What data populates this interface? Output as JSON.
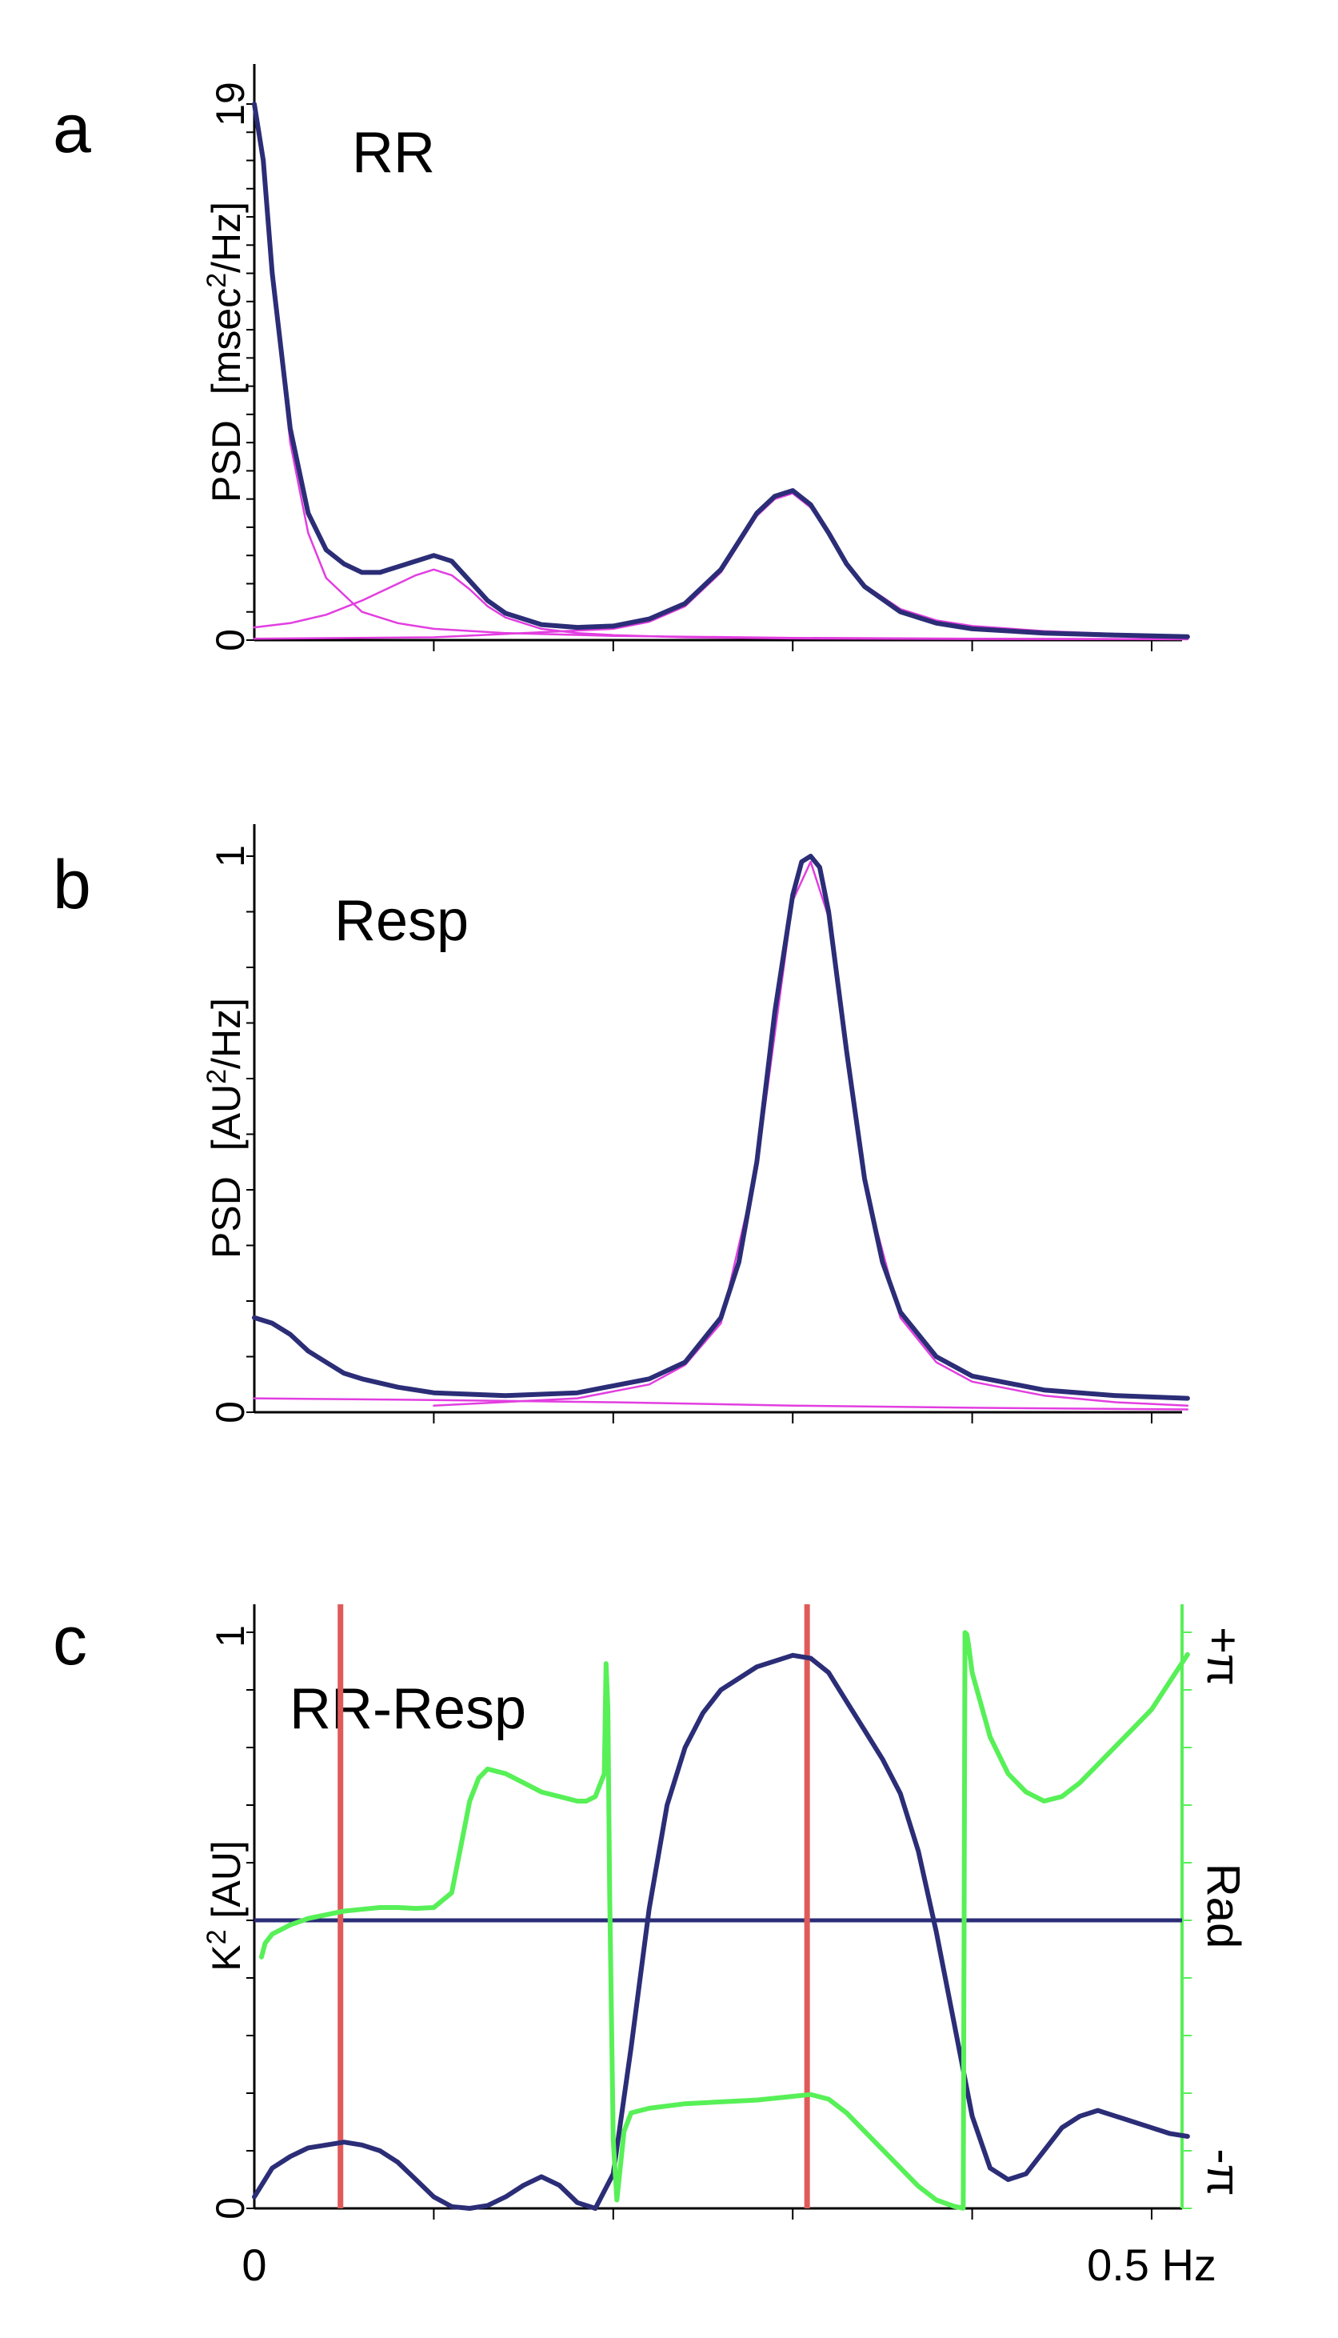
{
  "colors": {
    "total": "#2b2d77",
    "component": "#e23ee0",
    "coherence": "#2b2d77",
    "phase": "#57f057",
    "marker": "#e05a5a",
    "axis": "#000000"
  },
  "x_axis": {
    "start_label": "0",
    "end_label": "0.5 Hz"
  },
  "chart_data": [
    {
      "panel": "a",
      "type": "line",
      "title": "RR",
      "ylabel_main": "PSD",
      "ylabel_unit_pre": "[msec",
      "ylabel_unit_sup": "2",
      "ylabel_unit_post": "/Hz]",
      "ytick_top": "19",
      "ytick_bottom": "0",
      "xlim": [
        0,
        0.52
      ],
      "ylim": [
        0,
        19
      ],
      "series": [
        {
          "role": "total",
          "x": [
            0,
            0.005,
            0.01,
            0.02,
            0.03,
            0.04,
            0.05,
            0.06,
            0.07,
            0.08,
            0.09,
            0.1,
            0.11,
            0.12,
            0.13,
            0.14,
            0.16,
            0.18,
            0.2,
            0.22,
            0.24,
            0.26,
            0.27,
            0.28,
            0.29,
            0.3,
            0.31,
            0.32,
            0.33,
            0.34,
            0.36,
            0.38,
            0.4,
            0.44,
            0.48,
            0.52
          ],
          "y": [
            19,
            17,
            13,
            7.5,
            4.5,
            3.2,
            2.7,
            2.4,
            2.4,
            2.6,
            2.8,
            3.0,
            2.8,
            2.1,
            1.4,
            0.95,
            0.55,
            0.45,
            0.5,
            0.75,
            1.3,
            2.5,
            3.5,
            4.5,
            5.1,
            5.3,
            4.8,
            3.8,
            2.7,
            1.9,
            1.0,
            0.6,
            0.4,
            0.25,
            0.18,
            0.12
          ]
        },
        {
          "role": "component-vlf",
          "x": [
            0,
            0.005,
            0.01,
            0.02,
            0.03,
            0.04,
            0.06,
            0.08,
            0.1,
            0.14,
            0.2,
            0.3,
            0.4,
            0.52
          ],
          "y": [
            19,
            16.8,
            12.8,
            7.0,
            3.8,
            2.2,
            1.0,
            0.6,
            0.4,
            0.25,
            0.15,
            0.08,
            0.05,
            0.03
          ]
        },
        {
          "role": "component-lf",
          "x": [
            0,
            0.02,
            0.04,
            0.06,
            0.08,
            0.09,
            0.1,
            0.11,
            0.12,
            0.13,
            0.14,
            0.16,
            0.18,
            0.2,
            0.24,
            0.3,
            0.4,
            0.52
          ],
          "y": [
            0.45,
            0.6,
            0.9,
            1.4,
            2.0,
            2.3,
            2.5,
            2.3,
            1.8,
            1.2,
            0.8,
            0.4,
            0.25,
            0.18,
            0.1,
            0.06,
            0.04,
            0.03
          ]
        },
        {
          "role": "component-hf",
          "x": [
            0,
            0.1,
            0.2,
            0.22,
            0.24,
            0.26,
            0.27,
            0.28,
            0.29,
            0.3,
            0.31,
            0.32,
            0.33,
            0.34,
            0.36,
            0.38,
            0.4,
            0.44,
            0.48,
            0.52
          ],
          "y": [
            0.05,
            0.1,
            0.4,
            0.65,
            1.2,
            2.4,
            3.4,
            4.4,
            5.0,
            5.2,
            4.7,
            3.75,
            2.7,
            1.95,
            1.1,
            0.7,
            0.5,
            0.32,
            0.22,
            0.15
          ]
        }
      ]
    },
    {
      "panel": "b",
      "type": "line",
      "title": "Resp",
      "ylabel_main": "PSD",
      "ylabel_unit_pre": "[AU",
      "ylabel_unit_sup": "2",
      "ylabel_unit_post": "/Hz]",
      "ytick_top": "1",
      "ytick_bottom": "0",
      "xlim": [
        0,
        0.52
      ],
      "ylim": [
        0,
        1
      ],
      "series": [
        {
          "role": "total",
          "x": [
            0,
            0.01,
            0.02,
            0.03,
            0.04,
            0.05,
            0.06,
            0.08,
            0.1,
            0.14,
            0.18,
            0.22,
            0.24,
            0.26,
            0.27,
            0.28,
            0.29,
            0.3,
            0.305,
            0.31,
            0.315,
            0.32,
            0.33,
            0.34,
            0.35,
            0.36,
            0.38,
            0.4,
            0.44,
            0.48,
            0.52
          ],
          "y": [
            0.17,
            0.16,
            0.14,
            0.11,
            0.09,
            0.07,
            0.06,
            0.045,
            0.035,
            0.03,
            0.035,
            0.06,
            0.09,
            0.17,
            0.27,
            0.45,
            0.72,
            0.93,
            0.99,
            1.0,
            0.98,
            0.9,
            0.65,
            0.42,
            0.27,
            0.18,
            0.1,
            0.065,
            0.04,
            0.03,
            0.025
          ]
        },
        {
          "role": "component-low",
          "x": [
            0,
            0.1,
            0.2,
            0.3,
            0.4,
            0.52
          ],
          "y": [
            0.025,
            0.022,
            0.018,
            0.012,
            0.008,
            0.005
          ]
        },
        {
          "role": "component-peak",
          "x": [
            0.1,
            0.18,
            0.22,
            0.24,
            0.26,
            0.28,
            0.3,
            0.31,
            0.32,
            0.34,
            0.36,
            0.38,
            0.4,
            0.44,
            0.48,
            0.52
          ],
          "y": [
            0.012,
            0.025,
            0.05,
            0.085,
            0.16,
            0.44,
            0.92,
            0.99,
            0.89,
            0.41,
            0.17,
            0.09,
            0.055,
            0.03,
            0.018,
            0.012
          ]
        }
      ]
    },
    {
      "panel": "c",
      "type": "line",
      "title": "RR-Resp",
      "ylabel_left_pre": "K",
      "ylabel_left_sup": "2",
      "ylabel_left_post": " [AU]",
      "ytick_top": "1",
      "ytick_bottom": "0",
      "ylabel_right": "Rad",
      "right_tick_top": "+π",
      "right_tick_bottom": "-π",
      "xlim": [
        0,
        0.52
      ],
      "ylim": [
        0,
        1
      ],
      "y2lim": [
        -3.1416,
        3.1416
      ],
      "markers_x": [
        0.048,
        0.308
      ],
      "series": [
        {
          "role": "coherence",
          "x": [
            0,
            0.01,
            0.02,
            0.03,
            0.04,
            0.05,
            0.06,
            0.07,
            0.08,
            0.09,
            0.1,
            0.11,
            0.12,
            0.13,
            0.14,
            0.15,
            0.16,
            0.17,
            0.18,
            0.19,
            0.2,
            0.21,
            0.22,
            0.23,
            0.24,
            0.25,
            0.26,
            0.28,
            0.3,
            0.31,
            0.32,
            0.33,
            0.34,
            0.35,
            0.36,
            0.37,
            0.38,
            0.39,
            0.4,
            0.41,
            0.42,
            0.43,
            0.44,
            0.45,
            0.46,
            0.47,
            0.48,
            0.49,
            0.5,
            0.51,
            0.52
          ],
          "y": [
            0.02,
            0.07,
            0.09,
            0.105,
            0.11,
            0.115,
            0.11,
            0.1,
            0.08,
            0.05,
            0.02,
            0.003,
            0.0,
            0.005,
            0.02,
            0.04,
            0.055,
            0.04,
            0.01,
            0.0,
            0.06,
            0.28,
            0.52,
            0.7,
            0.8,
            0.86,
            0.9,
            0.94,
            0.96,
            0.955,
            0.93,
            0.88,
            0.83,
            0.78,
            0.72,
            0.62,
            0.48,
            0.32,
            0.16,
            0.07,
            0.05,
            0.06,
            0.1,
            0.14,
            0.16,
            0.17,
            0.16,
            0.15,
            0.14,
            0.13,
            0.125
          ]
        },
        {
          "role": "phase",
          "x": [
            0.004,
            0.006,
            0.01,
            0.02,
            0.03,
            0.04,
            0.05,
            0.06,
            0.07,
            0.08,
            0.09,
            0.1,
            0.11,
            0.115,
            0.12,
            0.125,
            0.13,
            0.14,
            0.15,
            0.16,
            0.17,
            0.18,
            0.185,
            0.19,
            0.195,
            0.196,
            0.197,
            0.198,
            0.2,
            0.202,
            0.206,
            0.21,
            0.22,
            0.24,
            0.26,
            0.28,
            0.3,
            0.31,
            0.32,
            0.33,
            0.34,
            0.35,
            0.36,
            0.37,
            0.38,
            0.39,
            0.395,
            0.396,
            0.397,
            0.398,
            0.4,
            0.41,
            0.42,
            0.43,
            0.44,
            0.45,
            0.46,
            0.47,
            0.48,
            0.49,
            0.5,
            0.51,
            0.52
          ],
          "y": [
            -0.4,
            -0.25,
            -0.15,
            -0.05,
            0.02,
            0.06,
            0.1,
            0.12,
            0.14,
            0.14,
            0.13,
            0.14,
            0.3,
            0.8,
            1.3,
            1.55,
            1.65,
            1.6,
            1.5,
            1.4,
            1.35,
            1.3,
            1.3,
            1.35,
            1.6,
            2.8,
            2.3,
            0.3,
            -2.4,
            -3.05,
            -2.3,
            -2.1,
            -2.05,
            -2.0,
            -1.98,
            -1.96,
            -1.92,
            -1.9,
            -1.95,
            -2.1,
            -2.3,
            -2.5,
            -2.7,
            -2.9,
            -3.05,
            -3.12,
            -3.14,
            3.14,
            3.12,
            3.0,
            2.7,
            2.0,
            1.6,
            1.4,
            1.3,
            1.35,
            1.5,
            1.7,
            1.9,
            2.1,
            2.3,
            2.6,
            2.9
          ]
        }
      ]
    }
  ]
}
